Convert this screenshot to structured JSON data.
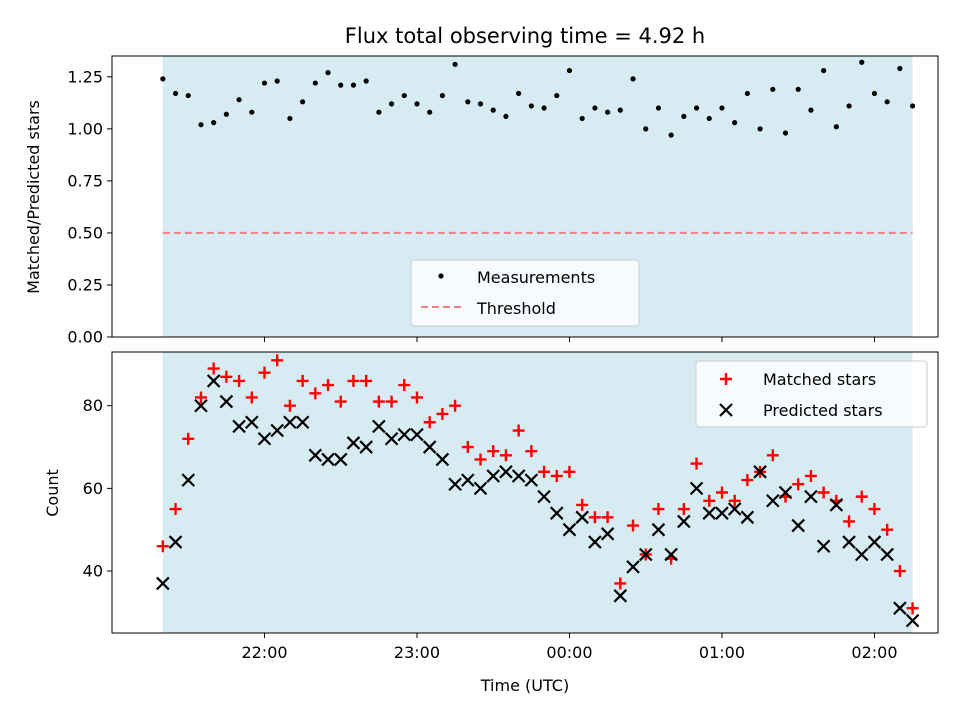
{
  "figure": {
    "title": "Flux total observing time = 4.92 h",
    "xlabel": "Time (UTC)",
    "xticks": [
      "22:00",
      "23:00",
      "00:00",
      "01:00",
      "02:00"
    ],
    "colors": {
      "shade": "#add8e6",
      "threshold": "#f08080",
      "matched": "#ff0000",
      "predicted": "#000000",
      "measurement": "#000000"
    }
  },
  "chart_data": [
    {
      "type": "scatter",
      "ylabel": "Matched/Predicted stars",
      "ylim": [
        0.0,
        1.35
      ],
      "yticks": [
        "0.00",
        "0.25",
        "0.50",
        "0.75",
        "1.00",
        "1.25"
      ],
      "shaded_range": [
        "21:20",
        "02:15"
      ],
      "legend_position": "bottom-center",
      "legend": [
        "Measurements",
        "Threshold"
      ],
      "threshold": 0.5,
      "x": [
        "21:20",
        "21:25",
        "21:30",
        "21:35",
        "21:40",
        "21:45",
        "21:50",
        "21:55",
        "22:00",
        "22:05",
        "22:10",
        "22:15",
        "22:20",
        "22:25",
        "22:30",
        "22:35",
        "22:40",
        "22:45",
        "22:50",
        "22:55",
        "23:00",
        "23:05",
        "23:10",
        "23:15",
        "23:20",
        "23:25",
        "23:30",
        "23:35",
        "23:40",
        "23:45",
        "23:50",
        "23:55",
        "00:00",
        "00:05",
        "00:10",
        "00:15",
        "00:20",
        "00:25",
        "00:30",
        "00:35",
        "00:40",
        "00:45",
        "00:50",
        "00:55",
        "01:00",
        "01:05",
        "01:10",
        "01:15",
        "01:20",
        "01:25",
        "01:30",
        "01:35",
        "01:40",
        "01:45",
        "01:50",
        "01:55",
        "02:00",
        "02:05",
        "02:10",
        "02:15"
      ],
      "ratio": [
        1.24,
        1.17,
        1.16,
        1.02,
        1.03,
        1.07,
        1.14,
        1.08,
        1.22,
        1.23,
        1.05,
        1.13,
        1.22,
        1.27,
        1.21,
        1.21,
        1.23,
        1.08,
        1.12,
        1.16,
        1.12,
        1.08,
        1.16,
        1.31,
        1.13,
        1.12,
        1.09,
        1.06,
        1.17,
        1.11,
        1.1,
        1.16,
        1.28,
        1.05,
        1.1,
        1.08,
        1.09,
        1.24,
        1.0,
        1.1,
        0.97,
        1.06,
        1.1,
        1.05,
        1.1,
        1.03,
        1.17,
        1.0,
        1.19,
        0.98,
        1.19,
        1.09,
        1.28,
        1.01,
        1.11,
        1.32,
        1.17,
        1.13,
        1.29,
        1.11
      ]
    },
    {
      "type": "scatter",
      "ylabel": "Count",
      "ylim": [
        25,
        93
      ],
      "yticks": [
        "40",
        "60",
        "80"
      ],
      "shaded_range": [
        "21:20",
        "02:15"
      ],
      "legend_position": "top-right",
      "legend": [
        "Matched stars",
        "Predicted stars"
      ],
      "series": [
        {
          "name": "Matched stars",
          "x": [
            "21:20",
            "21:25",
            "21:30",
            "21:35",
            "21:40",
            "21:45",
            "21:50",
            "21:55",
            "22:00",
            "22:05",
            "22:10",
            "22:15",
            "22:20",
            "22:25",
            "22:30",
            "22:35",
            "22:40",
            "22:45",
            "22:50",
            "22:55",
            "23:00",
            "23:05",
            "23:10",
            "23:15",
            "23:20",
            "23:25",
            "23:30",
            "23:35",
            "23:40",
            "23:45",
            "23:50",
            "23:55",
            "00:00",
            "00:05",
            "00:10",
            "00:15",
            "00:20",
            "00:25",
            "00:30",
            "00:35",
            "00:40",
            "00:45",
            "00:50",
            "00:55",
            "01:00",
            "01:05",
            "01:10",
            "01:15",
            "01:20",
            "01:25",
            "01:30",
            "01:35",
            "01:40",
            "01:45",
            "01:50",
            "01:55",
            "02:00",
            "02:05",
            "02:10",
            "02:15"
          ],
          "values": [
            46,
            55,
            72,
            82,
            89,
            87,
            86,
            82,
            88,
            91,
            80,
            86,
            83,
            85,
            81,
            86,
            86,
            81,
            81,
            85,
            82,
            76,
            78,
            80,
            70,
            67,
            69,
            68,
            74,
            69,
            64,
            63,
            64,
            56,
            53,
            53,
            37,
            51,
            44,
            55,
            43,
            55,
            66,
            57,
            59,
            57,
            62,
            64,
            68,
            58,
            61,
            63,
            59,
            57,
            52,
            58,
            55,
            50,
            40,
            31
          ]
        },
        {
          "name": "Predicted stars",
          "x": [
            "21:20",
            "21:25",
            "21:30",
            "21:35",
            "21:40",
            "21:45",
            "21:50",
            "21:55",
            "22:00",
            "22:05",
            "22:10",
            "22:15",
            "22:20",
            "22:25",
            "22:30",
            "22:35",
            "22:40",
            "22:45",
            "22:50",
            "22:55",
            "23:00",
            "23:05",
            "23:10",
            "23:15",
            "23:20",
            "23:25",
            "23:30",
            "23:35",
            "23:40",
            "23:45",
            "23:50",
            "23:55",
            "00:00",
            "00:05",
            "00:10",
            "00:15",
            "00:20",
            "00:25",
            "00:30",
            "00:35",
            "00:40",
            "00:45",
            "00:50",
            "00:55",
            "01:00",
            "01:05",
            "01:10",
            "01:15",
            "01:20",
            "01:25",
            "01:30",
            "01:35",
            "01:40",
            "01:45",
            "01:50",
            "01:55",
            "02:00",
            "02:05",
            "02:10",
            "02:15"
          ],
          "values": [
            37,
            47,
            62,
            80,
            86,
            81,
            75,
            76,
            72,
            74,
            76,
            76,
            68,
            67,
            67,
            71,
            70,
            75,
            72,
            73,
            73,
            70,
            67,
            61,
            62,
            60,
            63,
            64,
            63,
            62,
            58,
            54,
            50,
            53,
            47,
            49,
            34,
            41,
            44,
            50,
            44,
            52,
            60,
            54,
            54,
            55,
            53,
            64,
            57,
            59,
            51,
            58,
            46,
            56,
            47,
            44,
            47,
            44,
            31,
            28
          ]
        }
      ]
    }
  ]
}
